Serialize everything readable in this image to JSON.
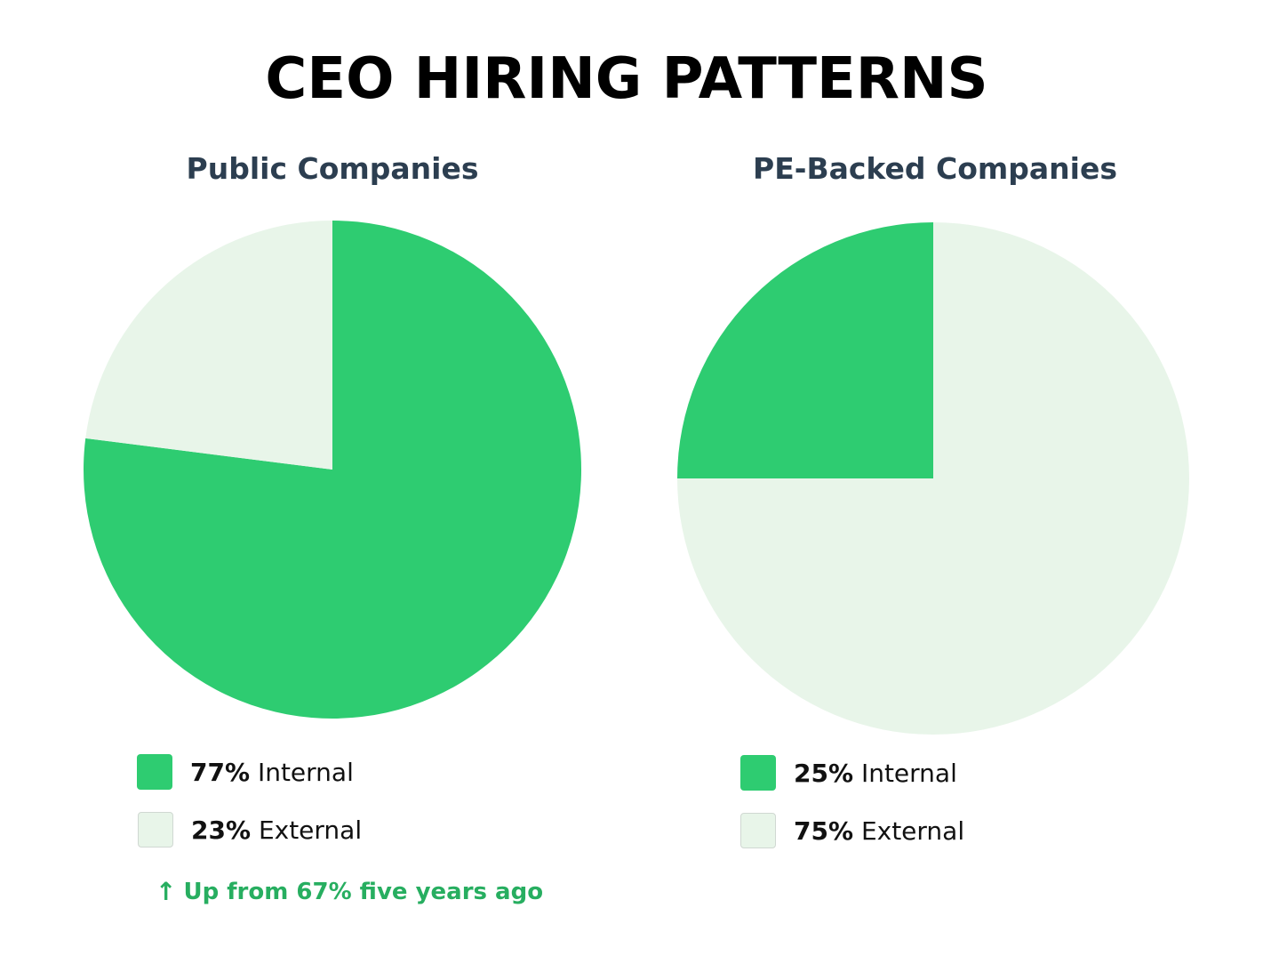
{
  "title": "CEO HIRING PATTERNS",
  "colors": {
    "internal": "#2ecc71",
    "external": "#e8f5e9",
    "panel_title": "#2c3e50",
    "trend_note": "#27ae60"
  },
  "chart_data": [
    {
      "type": "pie",
      "title": "Public Companies",
      "slices": [
        {
          "label": "Internal",
          "value": 77,
          "display": "77%"
        },
        {
          "label": "External",
          "value": 23,
          "display": "23%"
        }
      ],
      "legend_placement": "bottom",
      "annotation": "Up from 67% five years ago"
    },
    {
      "type": "pie",
      "title": "PE-Backed Companies",
      "slices": [
        {
          "label": "Internal",
          "value": 25,
          "display": "25%"
        },
        {
          "label": "External",
          "value": 75,
          "display": "75%"
        }
      ],
      "legend_placement": "bottom"
    }
  ],
  "icons": {
    "trend_arrow": "arrow-up-icon"
  }
}
